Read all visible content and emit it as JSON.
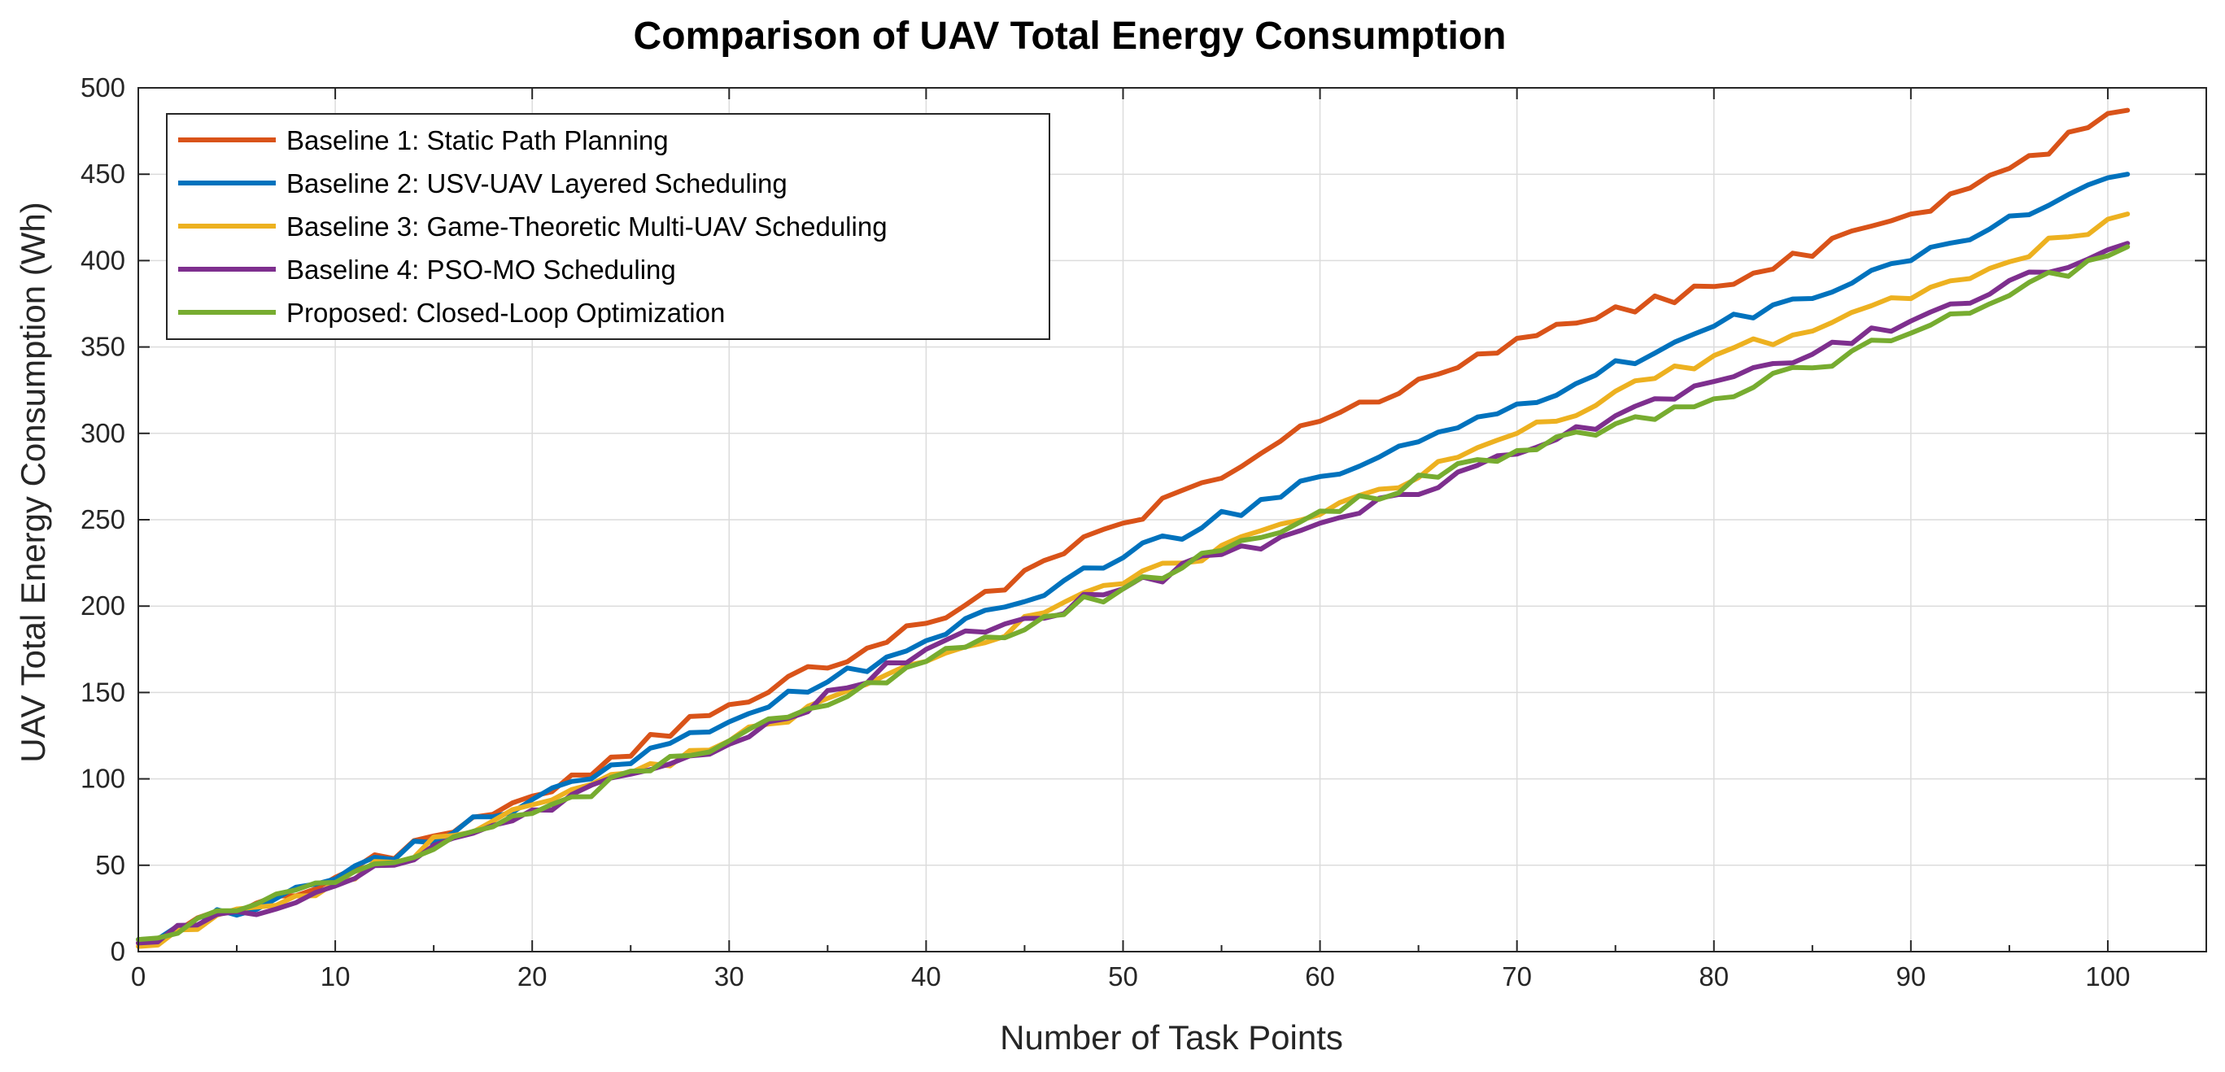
{
  "chart_data": {
    "type": "line",
    "title": "Comparison of UAV Total Energy Consumption",
    "xlabel": "Number of Task Points",
    "ylabel": "UAV Total Energy Consumption (Wh)",
    "xlim": [
      0,
      105
    ],
    "ylim": [
      0,
      500
    ],
    "xticks": [
      0,
      10,
      20,
      30,
      40,
      50,
      60,
      70,
      80,
      90,
      100
    ],
    "yticks": [
      0,
      50,
      100,
      150,
      200,
      250,
      300,
      350,
      400,
      450,
      500
    ],
    "grid": true,
    "legend_position": "top-left",
    "x": [
      0,
      10,
      20,
      30,
      40,
      50,
      60,
      70,
      80,
      90,
      101
    ],
    "series": [
      {
        "name": "Baseline 1: Static Path Planning",
        "color": "#D95319",
        "values": [
          5,
          43,
          90,
          143,
          190,
          248,
          307,
          355,
          385,
          427,
          487
        ]
      },
      {
        "name": "Baseline 2: USV-UAV Layered Scheduling",
        "color": "#0072BD",
        "values": [
          7,
          42,
          88,
          133,
          180,
          228,
          275,
          317,
          362,
          400,
          450
        ]
      },
      {
        "name": "Baseline 3: Game-Theoretic Multi-UAV Scheduling",
        "color": "#EDB120",
        "values": [
          3,
          40,
          85,
          122,
          168,
          213,
          253,
          300,
          345,
          378,
          427
        ]
      },
      {
        "name": "Baseline 4: PSO-MO Scheduling",
        "color": "#7E2F8E",
        "values": [
          5,
          38,
          82,
          120,
          175,
          210,
          248,
          288,
          330,
          365,
          410
        ]
      },
      {
        "name": "Proposed: Closed-Loop Optimization",
        "color": "#77AC30",
        "values": [
          7,
          40,
          80,
          122,
          168,
          210,
          255,
          290,
          320,
          358,
          408
        ]
      }
    ]
  }
}
